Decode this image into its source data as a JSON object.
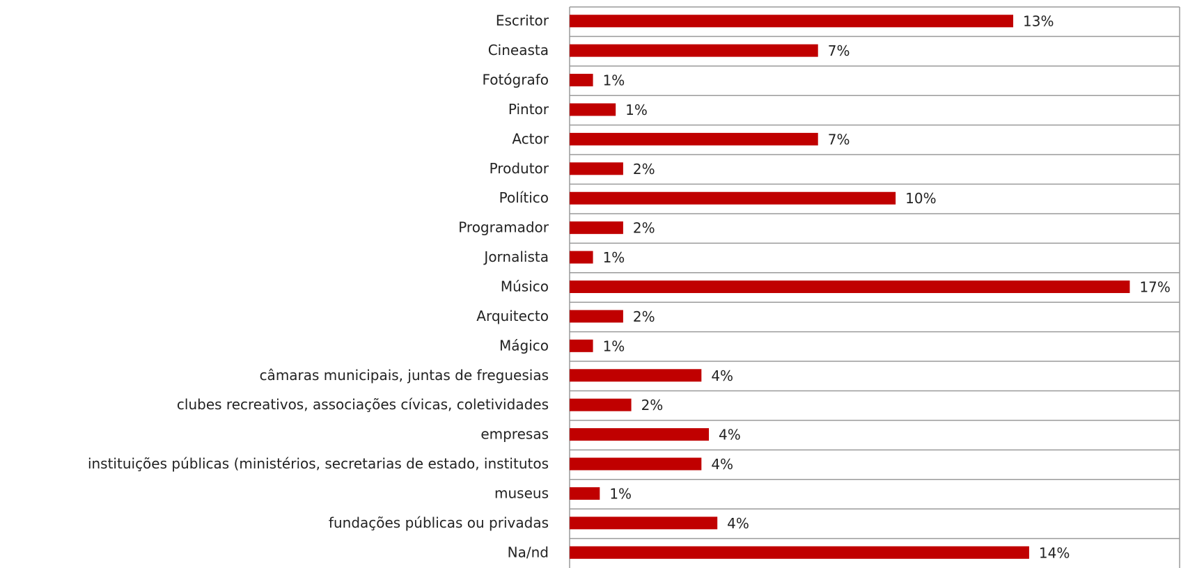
{
  "chart_data": {
    "type": "barh",
    "categories": [
      "Escritor",
      "Cineasta",
      "Fotógrafo",
      "Pintor",
      "Actor",
      "Produtor",
      "Político",
      "Programador",
      "Jornalista",
      "Músico",
      "Arquitecto",
      "Mágico",
      "câmaras municipais, juntas de freguesias",
      "clubes recreativos, associações cívicas, coletividades",
      "empresas",
      "instituições públicas (ministérios, secretarias de estado, institutos",
      "museus",
      "fundações públicas ou privadas",
      "Na/nd"
    ],
    "values": [
      13.09,
      7.33,
      0.69,
      1.36,
      7.33,
      1.58,
      9.62,
      1.58,
      0.69,
      16.53,
      1.58,
      0.69,
      3.89,
      1.82,
      4.11,
      3.89,
      0.89,
      4.36,
      13.56
    ],
    "value_labels": [
      "13%",
      "7%",
      "1%",
      "1%",
      "7%",
      "2%",
      "10%",
      "2%",
      "1%",
      "17%",
      "2%",
      "1%",
      "4%",
      "2%",
      "4%",
      "4%",
      "1%",
      "4%",
      "14%"
    ],
    "color": "#c00000",
    "xlim": [
      0,
      18
    ]
  }
}
